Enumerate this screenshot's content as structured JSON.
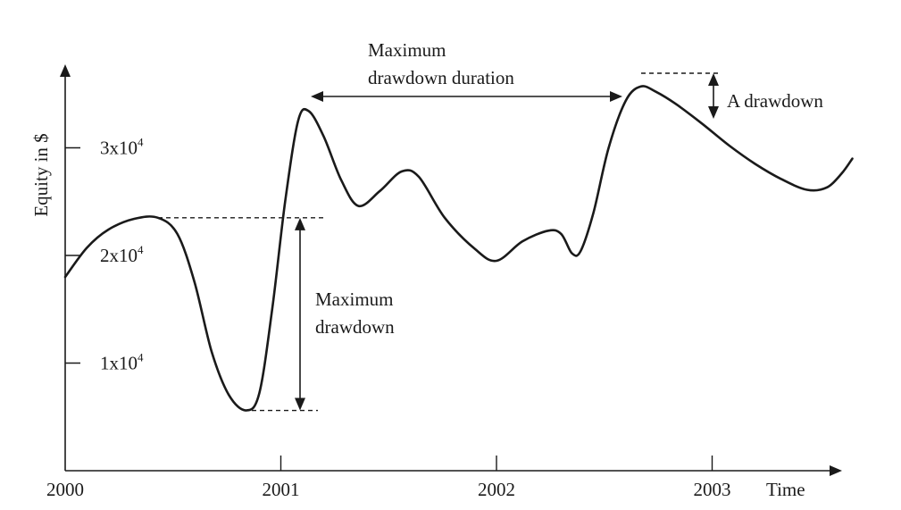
{
  "chart_data": {
    "type": "line",
    "title": "",
    "xlabel": "Time",
    "ylabel": "Equity in $",
    "xlim": [
      2000,
      2003.65
    ],
    "ylim": [
      0,
      38000
    ],
    "x_ticks": [
      {
        "value": 2000,
        "label": "2000"
      },
      {
        "value": 2001,
        "label": "2001"
      },
      {
        "value": 2002,
        "label": "2002"
      },
      {
        "value": 2003,
        "label": "2003"
      }
    ],
    "y_ticks": [
      {
        "value": 10000,
        "base": "1x10",
        "exp": "4"
      },
      {
        "value": 20000,
        "base": "2x10",
        "exp": "4"
      },
      {
        "value": 30000,
        "base": "3x10",
        "exp": "4"
      }
    ],
    "series": [
      {
        "x": [
          2000.0,
          2000.1,
          2000.2,
          2000.32,
          2000.43,
          2000.52,
          2000.6,
          2000.68,
          2000.76,
          2000.84,
          2000.9,
          2000.96,
          2001.02,
          2001.08,
          2001.13,
          2001.2,
          2001.28,
          2001.36,
          2001.46,
          2001.56,
          2001.64,
          2001.76,
          2001.9,
          2002.0,
          2002.12,
          2002.24,
          2002.3,
          2002.35,
          2002.39,
          2002.45,
          2002.52,
          2002.6,
          2002.67,
          2002.74,
          2002.83,
          2002.95,
          2003.08,
          2003.2,
          2003.32,
          2003.44,
          2003.53,
          2003.6,
          2003.65
        ],
        "y": [
          18000,
          20700,
          22400,
          23400,
          23500,
          22000,
          17500,
          11000,
          7000,
          5600,
          7200,
          15000,
          25000,
          32500,
          33400,
          31000,
          27000,
          24600,
          26000,
          27800,
          27300,
          23500,
          20600,
          19500,
          21300,
          22300,
          22000,
          20200,
          20400,
          24000,
          30000,
          34400,
          35700,
          35200,
          34100,
          32300,
          30200,
          28500,
          27100,
          26100,
          26300,
          27600,
          29000
        ]
      }
    ],
    "annotations": {
      "max_drawdown": {
        "text_line1": "Maximum",
        "text_line2": "drawdown",
        "from_y": 23500,
        "to_y": 5600
      },
      "max_drawdown_duration": {
        "text_line1": "Maximum",
        "text_line2": "drawdown duration",
        "from_x": 2001.15,
        "to_x": 2002.65
      },
      "a_drawdown": {
        "text": "A drawdown",
        "from_y": 36000,
        "to_y": 32800
      }
    },
    "grid": false,
    "legend": "none"
  }
}
